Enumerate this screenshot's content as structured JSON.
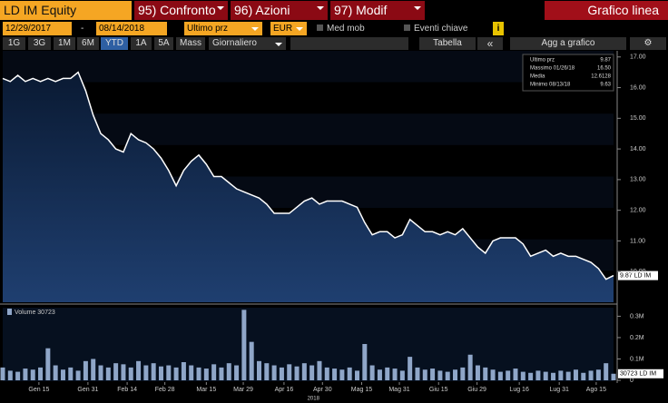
{
  "toolbar": {
    "ticker": "LD IM Equity",
    "tabs": [
      "95) Confronto",
      "96) Azioni",
      "97) Modif"
    ],
    "chart_type": "Grafico linea",
    "start_date": "12/29/2017",
    "separator": "-",
    "end_date": "08/14/2018",
    "field": "Ultimo prz",
    "currency": "EUR",
    "moving_avg": "Med mob",
    "key_events": "Eventi chiave",
    "info": "i",
    "periods": [
      "1G",
      "3G",
      "1M",
      "6M",
      "YTD",
      "1A",
      "5A",
      "Mass"
    ],
    "frequency": "Giornaliero",
    "table": "Tabella",
    "collapse": "«",
    "add_to_chart": "Agg a grafico"
  },
  "chart_data": [
    {
      "type": "area",
      "series": [
        {
          "name": "LD IM",
          "color": "#ffffff",
          "values": [
            16.3,
            16.2,
            16.4,
            16.2,
            16.3,
            16.2,
            16.3,
            16.2,
            16.3,
            16.3,
            16.5,
            15.9,
            15.1,
            14.5,
            14.3,
            14.0,
            13.9,
            14.5,
            14.3,
            14.2,
            14.0,
            13.7,
            13.3,
            12.8,
            13.3,
            13.6,
            13.8,
            13.5,
            13.1,
            13.1,
            12.9,
            12.7,
            12.6,
            12.5,
            12.4,
            12.2,
            11.9,
            11.9,
            11.9,
            12.1,
            12.3,
            12.4,
            12.2,
            12.3,
            12.3,
            12.3,
            12.2,
            12.1,
            11.6,
            11.2,
            11.3,
            11.3,
            11.1,
            11.2,
            11.7,
            11.5,
            11.3,
            11.3,
            11.2,
            11.3,
            11.2,
            11.4,
            11.1,
            10.8,
            10.6,
            11.0,
            11.1,
            11.1,
            11.1,
            10.9,
            10.5,
            10.6,
            10.7,
            10.5,
            10.6,
            10.5,
            10.5,
            10.4,
            10.3,
            10.1,
            9.75,
            9.87
          ]
        }
      ],
      "xlim": [
        0,
        81
      ],
      "ylim": [
        9.0,
        17.2
      ],
      "yticks": [
        {
          "value": 17,
          "label": "17.00"
        },
        {
          "value": 16,
          "label": "16.00"
        },
        {
          "value": 15,
          "label": "15.00"
        },
        {
          "value": 14,
          "label": "14.00"
        },
        {
          "value": 13,
          "label": "13.00"
        },
        {
          "value": 12,
          "label": "12.00"
        },
        {
          "value": 11,
          "label": "11.00"
        },
        {
          "value": 10,
          "label": "10.00"
        }
      ],
      "last_label": "9.87 LD IM",
      "stats": [
        {
          "label": "Ultimo prz",
          "value": "9.87"
        },
        {
          "label": "Massimo 01/26/18",
          "value": "16.50"
        },
        {
          "label": "Media",
          "value": "12.6128"
        },
        {
          "label": "Minimo 08/13/18",
          "value": "9.63"
        }
      ]
    },
    {
      "type": "bar",
      "series": [
        {
          "name": "Volume",
          "color": "#8fa6c8",
          "values": [
            60000,
            45000,
            40000,
            55000,
            50000,
            60000,
            150000,
            70000,
            50000,
            60000,
            45000,
            90000,
            100000,
            70000,
            60000,
            80000,
            75000,
            60000,
            90000,
            70000,
            80000,
            65000,
            70000,
            60000,
            85000,
            70000,
            60000,
            55000,
            75000,
            60000,
            80000,
            70000,
            330000,
            180000,
            90000,
            80000,
            70000,
            60000,
            75000,
            65000,
            80000,
            70000,
            90000,
            60000,
            55000,
            50000,
            60000,
            45000,
            170000,
            70000,
            50000,
            60000,
            55000,
            45000,
            110000,
            60000,
            50000,
            55000,
            45000,
            40000,
            50000,
            60000,
            120000,
            70000,
            60000,
            50000,
            40000,
            45000,
            55000,
            40000,
            35000,
            45000,
            40000,
            35000,
            45000,
            40000,
            50000,
            35000,
            45000,
            50000,
            80000,
            30723
          ]
        }
      ],
      "legend": "Volume 30723",
      "last_label": "30723 LD IM",
      "xlim": [
        0,
        81
      ],
      "ylim": [
        0,
        340000
      ],
      "yticks": [
        {
          "value": 300000,
          "label": "0.3M"
        },
        {
          "value": 200000,
          "label": "0.2M"
        },
        {
          "value": 100000,
          "label": "0.1M"
        },
        0
      ],
      "xticks": [
        {
          "value": 4.8,
          "label": "Gen 15"
        },
        {
          "value": 11.3,
          "label": "Gen 31"
        },
        {
          "value": 16.5,
          "label": "Feb 14"
        },
        {
          "value": 21.5,
          "label": "Feb 28"
        },
        {
          "value": 27.0,
          "label": "Mar 15"
        },
        {
          "value": 31.9,
          "label": "Mar 29"
        },
        {
          "value": 37.3,
          "label": "Apr 16"
        },
        {
          "value": 42.4,
          "label": "Apr 30"
        },
        {
          "value": 47.6,
          "label": "Mag 15"
        },
        {
          "value": 52.6,
          "label": "Mag 31"
        },
        {
          "value": 57.8,
          "label": "Giu 15"
        },
        {
          "value": 62.9,
          "label": "Giu 29"
        },
        {
          "value": 68.5,
          "label": "Lug 16"
        },
        {
          "value": 73.8,
          "label": "Lug 31"
        },
        {
          "value": 78.7,
          "label": "Ago 15"
        }
      ],
      "xlabel": "2018"
    }
  ]
}
